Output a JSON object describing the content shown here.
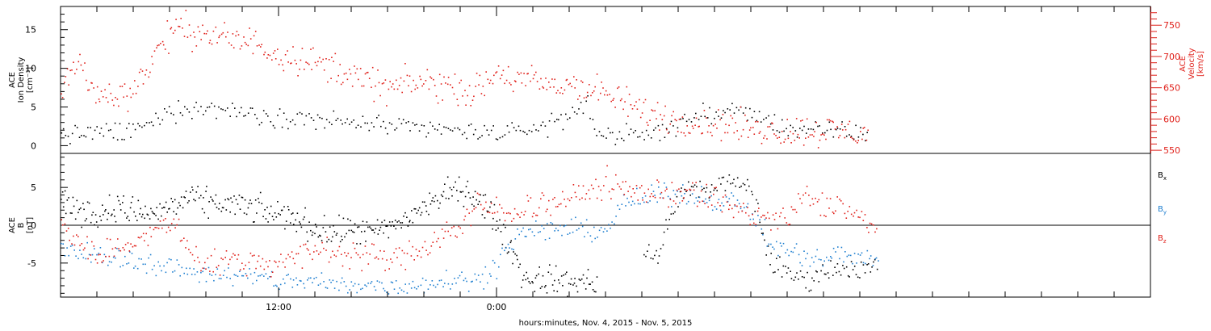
{
  "chart_data": [
    {
      "type": "scatter",
      "panel": "top",
      "ylabel_left_lines": [
        "ACE",
        "Ion Density",
        "[cm⁻³]"
      ],
      "ylabel_right_lines": [
        "ACE",
        "Velocity",
        "[km/s]"
      ],
      "left_axis": {
        "range": [
          -1,
          18
        ],
        "ticks": [
          "0",
          "5",
          "10",
          "15"
        ],
        "tick_values": [
          0,
          5,
          10,
          15
        ]
      },
      "right_axis": {
        "range": [
          545,
          780
        ],
        "ticks": [
          "550",
          "600",
          "650",
          "700",
          "750"
        ],
        "tick_values": [
          550,
          600,
          650,
          700,
          750
        ],
        "color": "#e0201a"
      },
      "series": [
        {
          "color": "#000000",
          "axis": "left",
          "keys": [
            [
              0,
              1.8
            ],
            [
              1,
              1.7
            ],
            [
              2,
              1.6
            ],
            [
              3,
              1.8
            ],
            [
              4,
              2.0
            ],
            [
              5,
              2.8
            ],
            [
              6,
              4.5
            ],
            [
              7,
              5.0
            ],
            [
              8,
              4.8
            ],
            [
              9,
              4.7
            ],
            [
              10,
              4.5
            ],
            [
              11,
              4.2
            ],
            [
              12,
              3.8
            ],
            [
              13,
              3.7
            ],
            [
              14,
              3.5
            ],
            [
              15,
              3.2
            ],
            [
              16,
              3.0
            ],
            [
              17,
              2.8
            ],
            [
              18,
              2.6
            ],
            [
              19,
              2.4
            ],
            [
              20,
              2.2
            ],
            [
              21,
              2.0
            ],
            [
              22,
              1.9
            ],
            [
              23,
              1.9
            ],
            [
              24,
              1.8
            ],
            [
              25,
              1.8
            ],
            [
              26,
              2.2
            ],
            [
              27,
              3.0
            ],
            [
              28,
              4.0
            ],
            [
              29,
              5.5
            ],
            [
              29.3,
              2.3
            ],
            [
              30,
              1.6
            ],
            [
              31,
              1.3
            ],
            [
              32,
              1.4
            ],
            [
              33,
              2.0
            ],
            [
              34,
              3.0
            ],
            [
              35,
              3.8
            ],
            [
              36,
              4.2
            ],
            [
              37,
              4.5
            ],
            [
              38,
              4.0
            ],
            [
              39,
              3.2
            ],
            [
              40,
              2.5
            ],
            [
              41,
              2.0
            ],
            [
              42,
              1.9
            ],
            [
              43,
              1.8
            ],
            [
              44,
              1.7
            ],
            [
              44.5,
              1.7
            ]
          ],
          "noise": 1.1,
          "n": 360
        },
        {
          "color": "#e0201a",
          "axis": "right",
          "keys": [
            [
              0,
              655
            ],
            [
              1,
              690
            ],
            [
              2,
              640
            ],
            [
              3,
              635
            ],
            [
              4,
              650
            ],
            [
              5,
              695
            ],
            [
              6,
              740
            ],
            [
              7,
              745
            ],
            [
              8,
              735
            ],
            [
              9,
              730
            ],
            [
              10,
              725
            ],
            [
              11,
              720
            ],
            [
              12,
              705
            ],
            [
              13,
              700
            ],
            [
              14,
              690
            ],
            [
              15,
              685
            ],
            [
              16,
              670
            ],
            [
              17,
              660
            ],
            [
              18,
              650
            ],
            [
              19,
              655
            ],
            [
              20,
              660
            ],
            [
              21,
              655
            ],
            [
              22,
              650
            ],
            [
              23,
              645
            ],
            [
              24,
              675
            ],
            [
              25,
              665
            ],
            [
              26,
              660
            ],
            [
              27,
              652
            ],
            [
              28,
              658
            ],
            [
              29,
              650
            ],
            [
              30,
              640
            ],
            [
              31,
              625
            ],
            [
              32,
              615
            ],
            [
              33,
              605
            ],
            [
              34,
              600
            ],
            [
              35,
              595
            ],
            [
              36,
              592
            ],
            [
              37,
              590
            ],
            [
              38,
              585
            ],
            [
              39,
              583
            ],
            [
              40,
              582
            ],
            [
              41,
              582
            ],
            [
              42,
              582
            ],
            [
              43,
              581
            ],
            [
              44,
              580
            ],
            [
              44.5,
              580
            ]
          ],
          "noise": 22,
          "n": 520
        }
      ]
    },
    {
      "type": "scatter",
      "panel": "bottom",
      "ylabel_left_lines": [
        "ACE",
        "B",
        "[nT]"
      ],
      "left_axis": {
        "range": [
          -9.5,
          9.5
        ],
        "ticks": [
          "-5",
          "0",
          "5"
        ],
        "tick_values": [
          -5,
          0,
          5
        ]
      },
      "zero_line": true,
      "legend": [
        {
          "label": "B",
          "subscript": "x",
          "color": "#000000"
        },
        {
          "label": "B",
          "subscript": "y",
          "color": "#1f7fd0"
        },
        {
          "label": "B",
          "subscript": "z",
          "color": "#e0201a"
        }
      ],
      "series": [
        {
          "name": "Bx",
          "color": "#000000",
          "keys": [
            [
              0,
              3.5
            ],
            [
              1,
              2.0
            ],
            [
              2,
              1.5
            ],
            [
              3,
              2.5
            ],
            [
              4,
              2.0
            ],
            [
              5,
              1.5
            ],
            [
              6,
              2.5
            ],
            [
              7,
              3.5
            ],
            [
              8,
              3.0
            ],
            [
              9,
              3.0
            ],
            [
              10,
              2.5
            ],
            [
              11,
              2.0
            ],
            [
              12,
              1.5
            ],
            [
              13,
              1.0
            ],
            [
              14,
              -0.5
            ],
            [
              15,
              -1.0
            ],
            [
              16,
              -0.5
            ],
            [
              17,
              -1.0
            ],
            [
              18,
              -0.5
            ],
            [
              19,
              1.0
            ],
            [
              20,
              2.5
            ],
            [
              21,
              4.0
            ],
            [
              22,
              5.0
            ],
            [
              23,
              3.5
            ],
            [
              24,
              0.5
            ],
            [
              25,
              -4.0
            ],
            [
              25.5,
              -7.2
            ],
            [
              26,
              -7.0
            ],
            [
              27,
              -7.2
            ],
            [
              28,
              -7.4
            ],
            [
              29,
              -7.5
            ],
            [
              29.5,
              -7.5
            ]
          ],
          "keys2": [
            [
              32,
              -4.0
            ],
            [
              33,
              -3.6
            ],
            [
              34,
              4.5
            ],
            [
              35,
              4.8
            ],
            [
              36,
              5.2
            ],
            [
              37,
              5.5
            ],
            [
              38,
              5.2
            ],
            [
              39,
              -4.5
            ],
            [
              40,
              -6.5
            ],
            [
              41,
              -7.0
            ],
            [
              42,
              -6.0
            ],
            [
              43,
              -5.5
            ],
            [
              44,
              -6.0
            ],
            [
              45,
              -5.0
            ]
          ],
          "noise": 1.6,
          "n": 420
        },
        {
          "name": "By",
          "color": "#1f7fd0",
          "keys": [
            [
              0,
              -3.0
            ],
            [
              1,
              -3.5
            ],
            [
              2,
              -4.0
            ],
            [
              3,
              -4.2
            ],
            [
              4,
              -4.5
            ],
            [
              5,
              -5.0
            ],
            [
              6,
              -5.5
            ],
            [
              7,
              -6.0
            ],
            [
              8,
              -6.2
            ],
            [
              9,
              -6.5
            ],
            [
              10,
              -6.8
            ],
            [
              11,
              -7.0
            ],
            [
              12,
              -7.2
            ],
            [
              13,
              -7.3
            ],
            [
              14,
              -7.5
            ],
            [
              15,
              -7.8
            ],
            [
              16,
              -8.0
            ],
            [
              17,
              -7.8
            ],
            [
              18,
              -8.0
            ],
            [
              19,
              -8.2
            ],
            [
              20,
              -7.5
            ],
            [
              21,
              -7.0
            ],
            [
              22,
              -7.0
            ],
            [
              23,
              -7.2
            ],
            [
              24,
              -5.0
            ],
            [
              25,
              -1.5
            ],
            [
              26,
              -0.5
            ],
            [
              27,
              -0.6
            ],
            [
              28,
              -0.4
            ],
            [
              29,
              -0.5
            ],
            [
              30,
              -0.5
            ],
            [
              31,
              3.0
            ],
            [
              32,
              3.5
            ],
            [
              33,
              4.0
            ],
            [
              34,
              4.2
            ],
            [
              35,
              4.0
            ],
            [
              36,
              3.5
            ],
            [
              37,
              3.0
            ],
            [
              38,
              2.0
            ],
            [
              39,
              -2.0
            ],
            [
              40,
              -3.5
            ],
            [
              41,
              -4.0
            ],
            [
              42,
              -4.5
            ],
            [
              43,
              -3.5
            ],
            [
              44,
              -4.0
            ],
            [
              45,
              -5.0
            ]
          ],
          "noise": 1.2,
          "n": 440
        },
        {
          "name": "Bz",
          "color": "#e0201a",
          "keys": [
            [
              0,
              0.5
            ],
            [
              1,
              -2.0
            ],
            [
              2,
              -4.0
            ],
            [
              3,
              -3.0
            ],
            [
              4,
              -2.0
            ],
            [
              5,
              -1.0
            ],
            [
              6,
              0.5
            ],
            [
              7,
              -3.0
            ],
            [
              8,
              -5.0
            ],
            [
              9,
              -4.5
            ],
            [
              10,
              -5.0
            ],
            [
              11,
              -4.5
            ],
            [
              12,
              -5.0
            ],
            [
              13,
              -4.0
            ],
            [
              14,
              -3.5
            ],
            [
              15,
              -3.0
            ],
            [
              16,
              -3.5
            ],
            [
              17,
              -4.0
            ],
            [
              18,
              -4.5
            ],
            [
              19,
              -4.0
            ],
            [
              20,
              -3.0
            ],
            [
              21,
              -1.0
            ],
            [
              22,
              0.0
            ],
            [
              23,
              2.5
            ],
            [
              24,
              2.0
            ],
            [
              25,
              2.0
            ],
            [
              26,
              3.0
            ],
            [
              27,
              2.5
            ],
            [
              28,
              3.5
            ],
            [
              29,
              4.5
            ],
            [
              30,
              5.5
            ],
            [
              31,
              5.0
            ],
            [
              32,
              4.5
            ],
            [
              33,
              4.2
            ],
            [
              34,
              4.5
            ],
            [
              35,
              4.0
            ],
            [
              36,
              3.5
            ],
            [
              37,
              2.5
            ],
            [
              38,
              1.5
            ],
            [
              39,
              1.0
            ],
            [
              40,
              0.5
            ],
            [
              41,
              4.0
            ],
            [
              42,
              2.5
            ],
            [
              43,
              3.0
            ],
            [
              44,
              1.0
            ],
            [
              45,
              -1.5
            ]
          ],
          "noise": 1.6,
          "n": 480
        }
      ]
    }
  ],
  "x_axis": {
    "range": [
      0,
      60
    ],
    "major_ticks": [
      12,
      24
    ],
    "tick_labels": [
      "12:00",
      "0:00"
    ],
    "minor_every": 2,
    "xlabel": "hours:minutes, Nov.  4, 2015 - Nov.  5, 2015"
  }
}
